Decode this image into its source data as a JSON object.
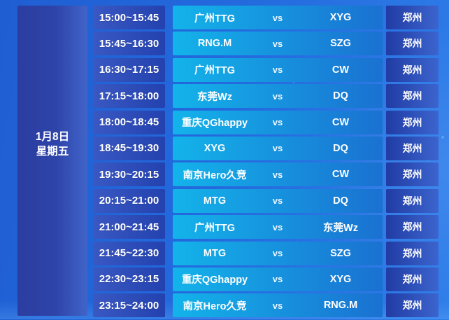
{
  "date": {
    "month_day": "1月8日",
    "weekday": "星期五"
  },
  "rows": [
    {
      "time": "15:00~15:45",
      "team1": "广州TTG",
      "vs": "vs",
      "team2": "XYG",
      "location": "郑州"
    },
    {
      "time": "15:45~16:30",
      "team1": "RNG.M",
      "vs": "vs",
      "team2": "SZG",
      "location": "郑州"
    },
    {
      "time": "16:30~17:15",
      "team1": "广州TTG",
      "vs": "vs",
      "team2": "CW",
      "location": "郑州"
    },
    {
      "time": "17:15~18:00",
      "team1": "东莞Wz",
      "vs": "vs",
      "team2": "DQ",
      "location": "郑州"
    },
    {
      "time": "18:00~18:45",
      "team1": "重庆QGhappy",
      "vs": "vs",
      "team2": "CW",
      "location": "郑州"
    },
    {
      "time": "18:45~19:30",
      "team1": "XYG",
      "vs": "vs",
      "team2": "DQ",
      "location": "郑州"
    },
    {
      "time": "19:30~20:15",
      "team1": "南京Hero久竞",
      "vs": "vs",
      "team2": "CW",
      "location": "郑州"
    },
    {
      "time": "20:15~21:00",
      "team1": "MTG",
      "vs": "vs",
      "team2": "DQ",
      "location": "郑州"
    },
    {
      "time": "21:00~21:45",
      "team1": "广州TTG",
      "vs": "vs",
      "team2": "东莞Wz",
      "location": "郑州"
    },
    {
      "time": "21:45~22:30",
      "team1": "MTG",
      "vs": "vs",
      "team2": "SZG",
      "location": "郑州"
    },
    {
      "time": "22:30~23:15",
      "team1": "重庆QGhappy",
      "vs": "vs",
      "team2": "XYG",
      "location": "郑州"
    },
    {
      "time": "23:15~24:00",
      "team1": "南京Hero久竞",
      "vs": "vs",
      "team2": "RNG.M",
      "location": "郑州"
    }
  ],
  "colors": {
    "background_start": "#1f5ed2",
    "background_end": "#2f7de9",
    "date_panel_start": "#2b3da0",
    "date_panel_end": "#4164c9",
    "time_cell_start": "#3a58c2",
    "time_cell_end": "#2442af",
    "match_cell_start": "#13b3ea",
    "match_cell_end": "#1a71d1",
    "location_cell_start": "#213ca4",
    "location_cell_end": "#3c64ce",
    "text": "#ffffff"
  }
}
